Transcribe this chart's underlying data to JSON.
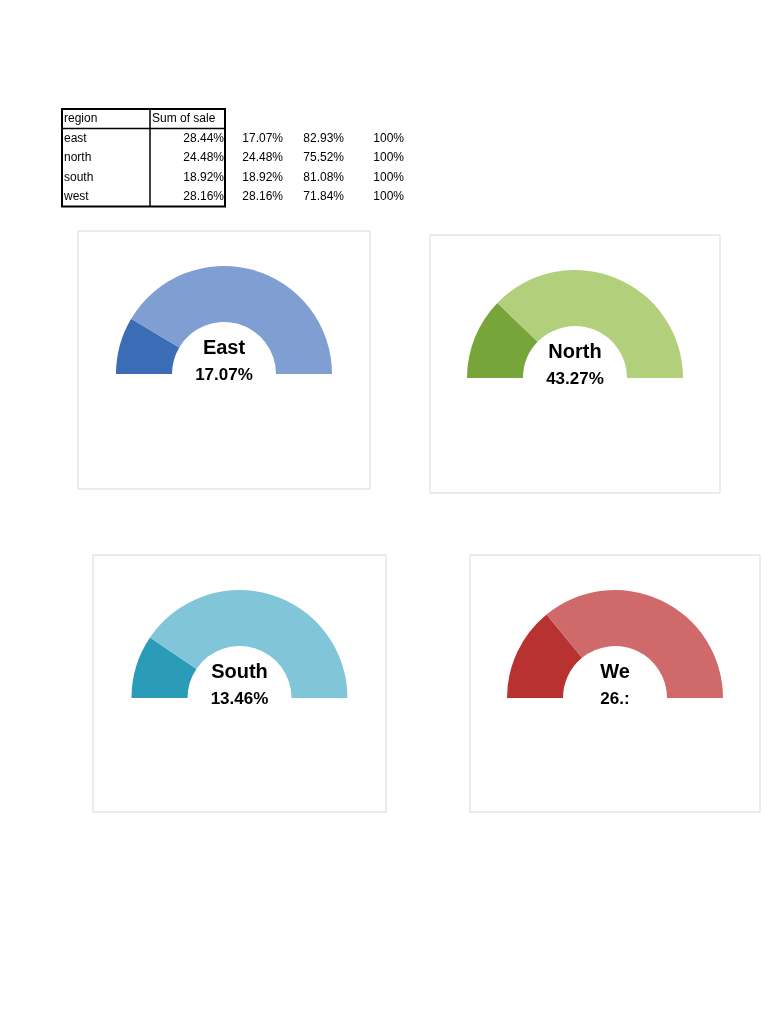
{
  "chart_data": [
    {
      "type": "other",
      "xlabel": "region",
      "categories": [
        "east",
        "north",
        "south",
        "west"
      ],
      "series": [
        {
          "name": "Sum of sale",
          "values": [
            28.44,
            24.48,
            18.92,
            28.16
          ],
          "value_labels": [
            "28.44%",
            "24.48%",
            "18.92%",
            "28.16%"
          ]
        },
        {
          "values": [
            17.07,
            24.48,
            18.92,
            28.16
          ],
          "value_labels": [
            "17.07%",
            "24.48%",
            "18.92%",
            "28.16%"
          ]
        },
        {
          "values": [
            82.93,
            75.52,
            81.08,
            71.84
          ],
          "value_labels": [
            "82.93%",
            "75.52%",
            "81.08%",
            "71.84%"
          ]
        },
        {
          "values": [
            100,
            100,
            100,
            100
          ],
          "value_labels": [
            "100%",
            "100%",
            "100%",
            "100%"
          ]
        }
      ]
    },
    {
      "type": "donut",
      "title": "East",
      "annotations": [
        "17.07%"
      ],
      "categories": [
        null,
        null
      ],
      "values": [
        17.07,
        82.93
      ],
      "colors": [
        "#3a6db5",
        "#7f9fd2"
      ]
    },
    {
      "type": "donut",
      "title": "North",
      "annotations": [
        "43.27%"
      ],
      "categories": [
        null,
        null
      ],
      "values": [
        24.48,
        75.52
      ],
      "colors": [
        "#77a53a",
        "#b2d07c"
      ]
    },
    {
      "type": "donut",
      "title": "South",
      "annotations": [
        "13.46%"
      ],
      "categories": [
        null,
        null
      ],
      "values": [
        18.92,
        81.08
      ],
      "colors": [
        "#2a9cb8",
        "#80c5d8"
      ]
    },
    {
      "type": "donut",
      "title": "We",
      "annotations": [
        "26.:"
      ],
      "categories": [
        null,
        null
      ],
      "values": [
        28.16,
        71.84
      ],
      "colors": [
        "#b83232",
        "#d06a6a"
      ]
    }
  ]
}
